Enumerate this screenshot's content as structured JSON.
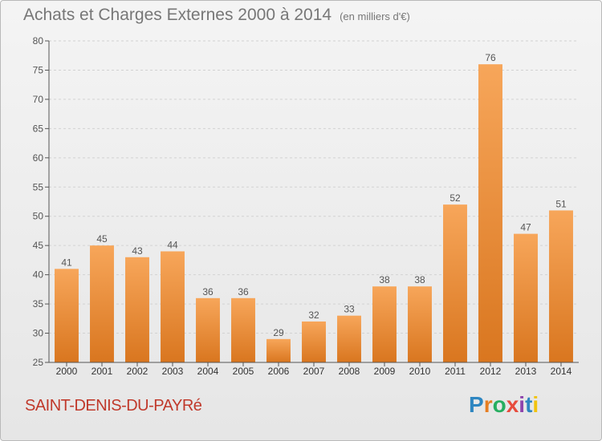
{
  "header": {
    "title": "Achats et Charges Externes 2000 à 2014",
    "subtitle": "(en milliers d'€)"
  },
  "footer": {
    "commune": "SAINT-DENIS-DU-PAYRé",
    "brand": "Proxiti"
  },
  "brand_letters": [
    {
      "ch": "P",
      "color": "#2e86c1"
    },
    {
      "ch": "r",
      "color": "#e67e22"
    },
    {
      "ch": "o",
      "color": "#27ae60"
    },
    {
      "ch": "x",
      "color": "#e74c3c"
    },
    {
      "ch": "i",
      "color": "#8e44ad"
    },
    {
      "ch": "t",
      "color": "#2e86c1"
    },
    {
      "ch": "i",
      "color": "#f1c40f"
    }
  ],
  "colors": {
    "bar_light": "#f7a65a",
    "bar_dark": "#d9761f",
    "axis": "#555555",
    "grid": "#d2d2d2"
  },
  "chart_data": {
    "type": "bar",
    "categories": [
      "2000",
      "2001",
      "2002",
      "2003",
      "2004",
      "2005",
      "2006",
      "2007",
      "2008",
      "2009",
      "2010",
      "2011",
      "2012",
      "2013",
      "2014"
    ],
    "values": [
      41,
      45,
      43,
      44,
      36,
      36,
      29,
      32,
      33,
      38,
      38,
      52,
      76,
      47,
      51
    ],
    "ylim": [
      25,
      80
    ],
    "yticks": [
      25,
      30,
      35,
      40,
      45,
      50,
      55,
      60,
      65,
      70,
      75,
      80
    ],
    "grid": true
  }
}
